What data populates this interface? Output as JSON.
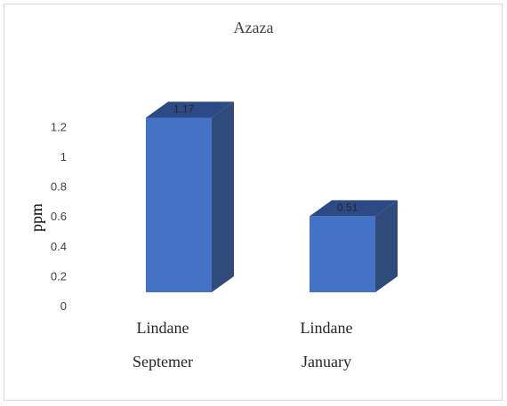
{
  "chart_data": {
    "type": "bar",
    "title": "Azaza",
    "ylabel": "ppm",
    "xlabel": "",
    "categories": [
      {
        "line1": "Lindane",
        "line2": "Septemer"
      },
      {
        "line1": "Lindane",
        "line2": "January"
      }
    ],
    "values": [
      1.17,
      0.51
    ],
    "data_labels": [
      "1.17",
      "0.51"
    ],
    "y_ticks": [
      "0",
      "0.2",
      "0.4",
      "0.6",
      "0.8",
      "1",
      "1.2"
    ],
    "ylim": [
      0,
      1.2
    ],
    "grid": false,
    "legend": "none",
    "style_3d": true,
    "colors": {
      "bar_front": "#4472c4",
      "bar_side": "#2f4b7c",
      "bar_top": "#2b4a86"
    }
  }
}
